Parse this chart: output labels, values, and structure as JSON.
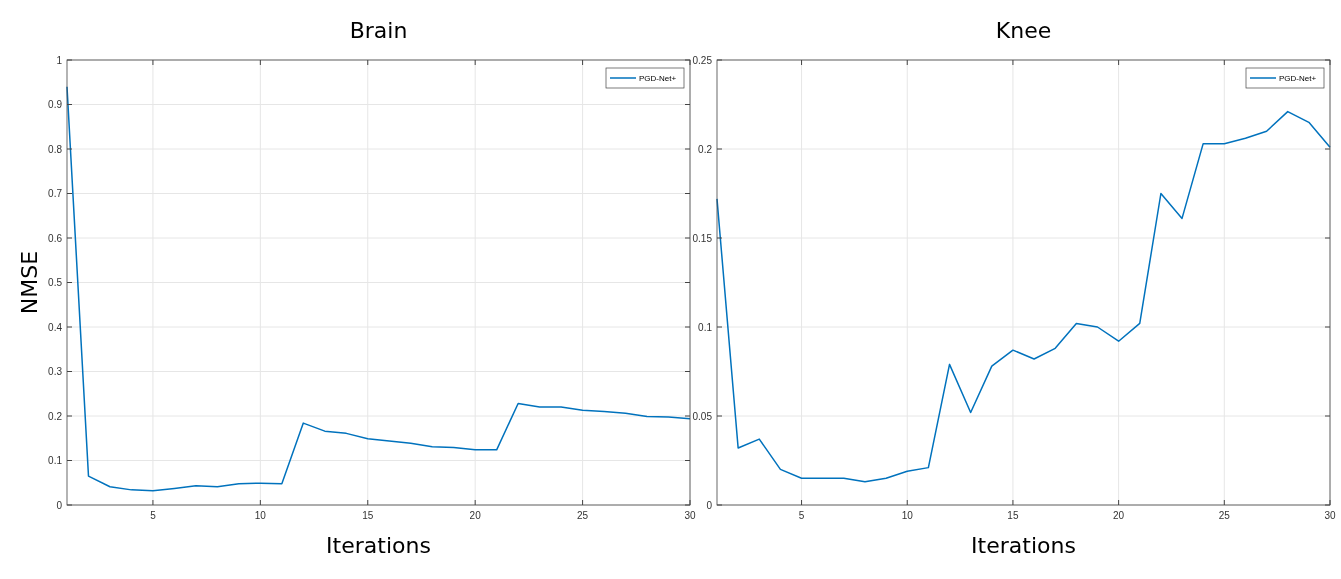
{
  "chart_data": [
    {
      "type": "line",
      "title": "Brain",
      "xlabel": "Iterations",
      "ylabel": "NMSE",
      "x": [
        1,
        2,
        3,
        4,
        5,
        6,
        7,
        8,
        9,
        10,
        11,
        12,
        13,
        14,
        15,
        16,
        17,
        18,
        19,
        20,
        21,
        22,
        23,
        24,
        25,
        26,
        27,
        28,
        29,
        30
      ],
      "series": [
        {
          "name": "PGD-Net+",
          "color": "#0072bd",
          "values": [
            0.94,
            0.065,
            0.041,
            0.034,
            0.032,
            0.037,
            0.043,
            0.041,
            0.048,
            0.049,
            0.048,
            0.184,
            0.166,
            0.161,
            0.149,
            0.144,
            0.139,
            0.131,
            0.129,
            0.124,
            0.124,
            0.228,
            0.22,
            0.22,
            0.213,
            0.21,
            0.206,
            0.199,
            0.198,
            0.194
          ]
        }
      ],
      "xlim": [
        1,
        30
      ],
      "xticks": [
        5,
        10,
        15,
        20,
        25,
        30
      ],
      "ylim": [
        0,
        1
      ],
      "yticks": [
        0,
        0.1,
        0.2,
        0.3,
        0.4,
        0.5,
        0.6,
        0.7,
        0.8,
        0.9,
        1
      ],
      "grid": true,
      "legend": "top right"
    },
    {
      "type": "line",
      "title": "Knee",
      "xlabel": "Iterations",
      "x": [
        1,
        2,
        3,
        4,
        5,
        6,
        7,
        8,
        9,
        10,
        11,
        12,
        13,
        14,
        15,
        16,
        17,
        18,
        19,
        20,
        21,
        22,
        23,
        24,
        25,
        26,
        27,
        28,
        29,
        30
      ],
      "series": [
        {
          "name": "PGD-Net+",
          "color": "#0072bd",
          "values": [
            0.172,
            0.032,
            0.037,
            0.02,
            0.015,
            0.015,
            0.015,
            0.013,
            0.015,
            0.019,
            0.021,
            0.079,
            0.052,
            0.078,
            0.087,
            0.082,
            0.088,
            0.102,
            0.1,
            0.092,
            0.102,
            0.175,
            0.161,
            0.203,
            0.203,
            0.206,
            0.21,
            0.221,
            0.215,
            0.201
          ]
        }
      ],
      "xlim": [
        1,
        30
      ],
      "xticks": [
        5,
        10,
        15,
        20,
        25,
        30
      ],
      "ylim": [
        0,
        0.25
      ],
      "yticks": [
        0,
        0.05,
        0.1,
        0.15,
        0.2,
        0.25
      ],
      "grid": true,
      "legend": "top right"
    }
  ]
}
